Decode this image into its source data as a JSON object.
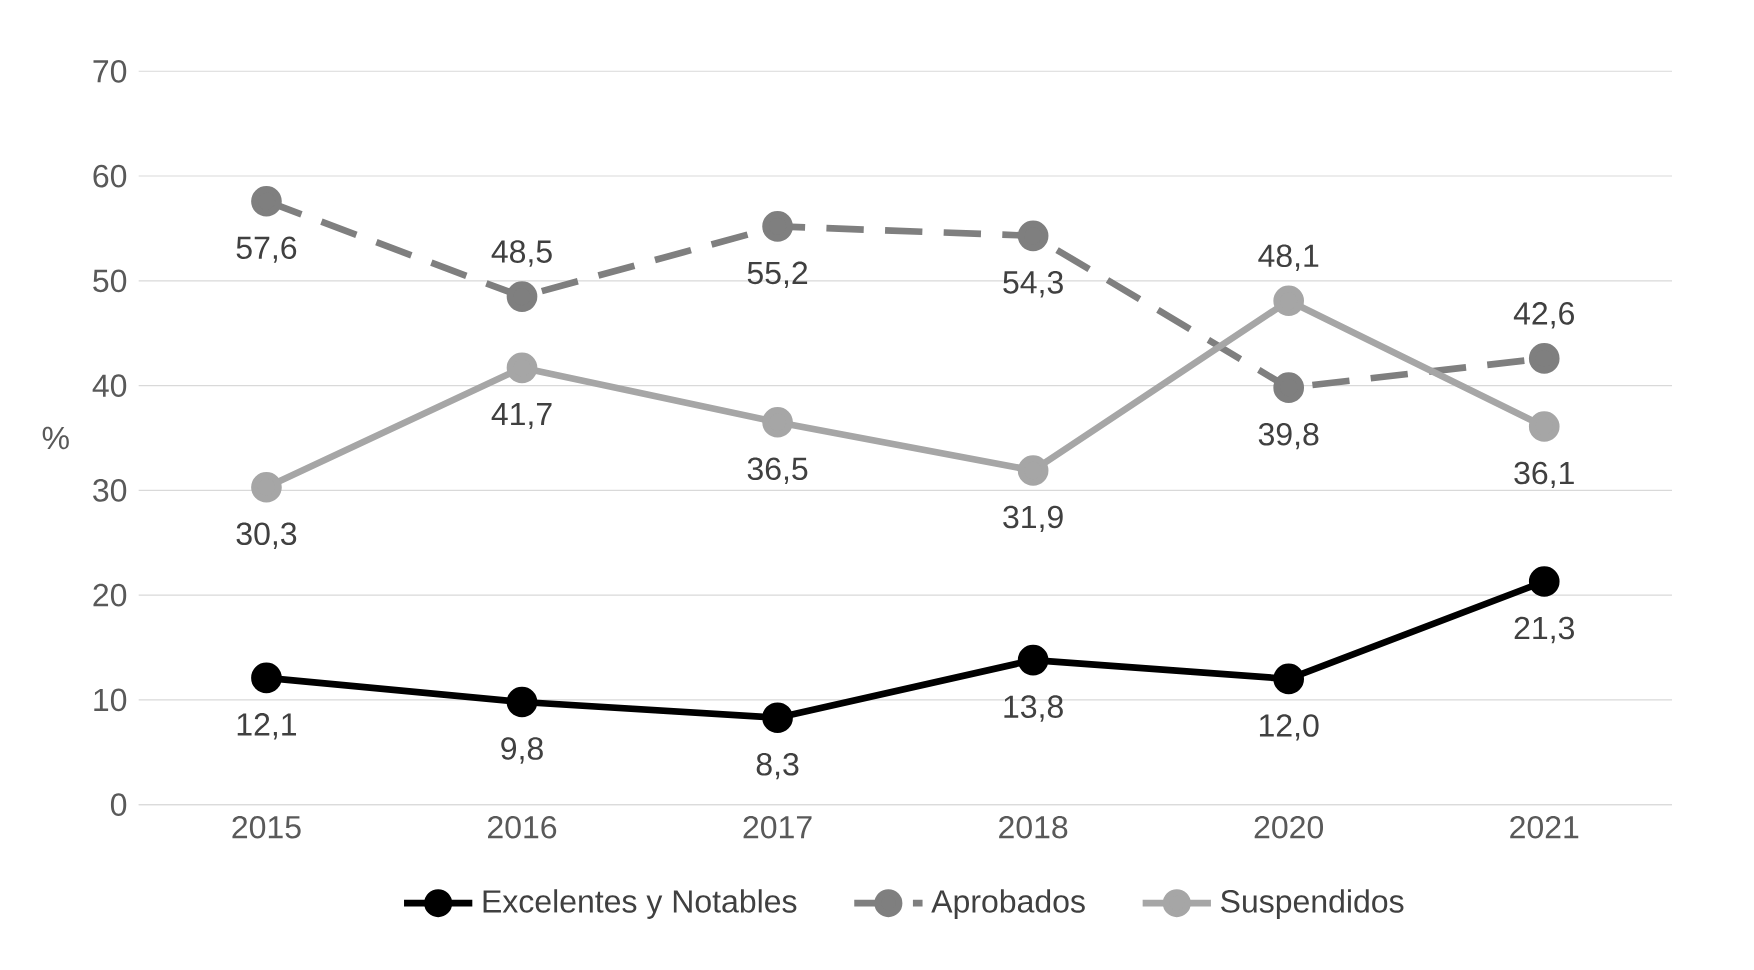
{
  "chart_data": {
    "type": "line",
    "ylabel": "%",
    "categories": [
      "2015",
      "2016",
      "2017",
      "2018",
      "2020",
      "2021"
    ],
    "series": [
      {
        "name": "Excelentes y Notables",
        "color": "#000000",
        "line_style": "solid",
        "values": [
          12.1,
          9.8,
          8.3,
          13.8,
          12.0,
          21.3
        ],
        "value_labels": [
          "12,1",
          "9,8",
          "8,3",
          "13,8",
          "12,0",
          "21,3"
        ]
      },
      {
        "name": "Aprobados",
        "color": "#7f7f7f",
        "line_style": "dashed",
        "values": [
          57.6,
          48.5,
          55.2,
          54.3,
          39.8,
          42.6
        ],
        "value_labels": [
          "57,6",
          "48,5",
          "55,2",
          "54,3",
          "39,8",
          "42,6"
        ]
      },
      {
        "name": "Suspendidos",
        "color": "#a6a6a6",
        "line_style": "solid",
        "values": [
          30.3,
          41.7,
          36.5,
          31.9,
          48.1,
          36.1
        ],
        "value_labels": [
          "30,3",
          "41,7",
          "36,5",
          "31,9",
          "48,1",
          "36,1"
        ]
      }
    ],
    "ylim": [
      0,
      70
    ],
    "yticks": [
      0,
      10,
      20,
      30,
      40,
      50,
      60,
      70
    ],
    "grid": "y",
    "legend": "bottom",
    "marker": "circle"
  }
}
